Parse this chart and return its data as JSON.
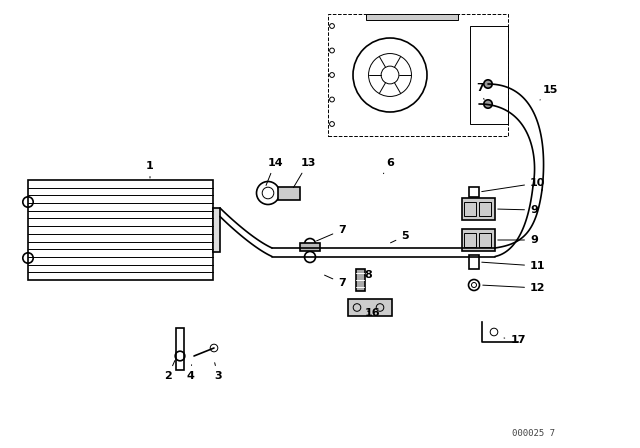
{
  "bg_color": "#ffffff",
  "line_color": "#000000",
  "fig_width": 6.4,
  "fig_height": 4.48,
  "dpi": 100,
  "watermark": "000025 7"
}
